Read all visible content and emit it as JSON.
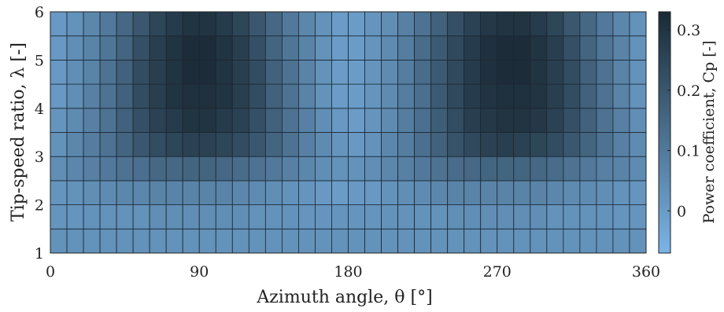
{
  "chart_data": {
    "type": "heatmap",
    "title": "",
    "xlabel": "Azimuth angle, θ [°]",
    "ylabel": "Tip-speed ratio, λ [-]",
    "colorbar_label": "Power coefficient, Cp [-]",
    "xlim": [
      0,
      360
    ],
    "ylim": [
      1,
      6
    ],
    "x_ticks": [
      "0",
      "90",
      "180",
      "270",
      "360"
    ],
    "y_ticks": [
      "1",
      "2",
      "3",
      "4",
      "5",
      "6"
    ],
    "colorbar_ticks": [
      "0",
      "0.1",
      "0.2",
      "0.3"
    ],
    "colorbar_range": [
      -0.07,
      0.33
    ],
    "color_low": "#7bb4e6",
    "color_high": "#1a2a35",
    "grid": true,
    "x_bin_width_deg": 10,
    "lambda_rows": [
      {
        "lambda_range": [
          1.0,
          1.5
        ],
        "values": [
          0.03,
          0.03,
          0.03,
          0.03,
          0.03,
          0.03,
          0.03,
          0.03,
          0.03,
          0.03,
          0.03,
          0.03,
          0.03,
          0.03,
          0.03,
          0.03,
          0.03,
          0.03,
          0.03,
          0.03,
          0.03,
          0.03,
          0.03,
          0.03,
          0.03,
          0.03,
          0.03,
          0.03,
          0.03,
          0.03,
          0.03,
          0.03,
          0.03,
          0.03,
          0.03,
          0.03
        ]
      },
      {
        "lambda_range": [
          1.5,
          2.0
        ],
        "values": [
          0.02,
          0.02,
          0.03,
          0.03,
          0.03,
          0.03,
          0.04,
          0.04,
          0.04,
          0.04,
          0.04,
          0.04,
          0.03,
          0.03,
          0.03,
          0.02,
          0.02,
          0.02,
          0.02,
          0.02,
          0.03,
          0.03,
          0.03,
          0.03,
          0.04,
          0.04,
          0.04,
          0.04,
          0.04,
          0.04,
          0.03,
          0.03,
          0.03,
          0.03,
          0.02,
          0.02
        ]
      },
      {
        "lambda_range": [
          2.0,
          2.5
        ],
        "values": [
          0.02,
          0.03,
          0.04,
          0.05,
          0.06,
          0.06,
          0.07,
          0.07,
          0.07,
          0.07,
          0.07,
          0.06,
          0.05,
          0.04,
          0.03,
          0.02,
          0.01,
          0.0,
          0.01,
          0.01,
          0.03,
          0.04,
          0.05,
          0.06,
          0.07,
          0.07,
          0.07,
          0.07,
          0.07,
          0.07,
          0.06,
          0.05,
          0.05,
          0.04,
          0.03,
          0.02
        ]
      },
      {
        "lambda_range": [
          2.5,
          3.0
        ],
        "values": [
          0.04,
          0.06,
          0.08,
          0.1,
          0.12,
          0.13,
          0.15,
          0.15,
          0.16,
          0.16,
          0.15,
          0.14,
          0.12,
          0.1,
          0.08,
          0.06,
          0.04,
          0.03,
          0.03,
          0.04,
          0.06,
          0.08,
          0.1,
          0.12,
          0.14,
          0.15,
          0.16,
          0.16,
          0.16,
          0.15,
          0.14,
          0.12,
          0.1,
          0.08,
          0.07,
          0.05
        ]
      },
      {
        "lambda_range": [
          3.0,
          3.5
        ],
        "values": [
          0.03,
          0.06,
          0.09,
          0.12,
          0.16,
          0.2,
          0.23,
          0.25,
          0.26,
          0.26,
          0.25,
          0.23,
          0.2,
          0.16,
          0.12,
          0.08,
          0.05,
          0.02,
          0.01,
          0.03,
          0.06,
          0.09,
          0.13,
          0.17,
          0.21,
          0.24,
          0.26,
          0.27,
          0.26,
          0.25,
          0.23,
          0.2,
          0.16,
          0.12,
          0.08,
          0.05
        ]
      },
      {
        "lambda_range": [
          3.5,
          4.0
        ],
        "values": [
          0.02,
          0.05,
          0.08,
          0.12,
          0.17,
          0.22,
          0.26,
          0.28,
          0.3,
          0.3,
          0.28,
          0.26,
          0.22,
          0.17,
          0.12,
          0.08,
          0.04,
          0.01,
          0.0,
          0.02,
          0.05,
          0.09,
          0.13,
          0.18,
          0.23,
          0.27,
          0.29,
          0.3,
          0.3,
          0.29,
          0.26,
          0.22,
          0.17,
          0.12,
          0.08,
          0.04
        ]
      },
      {
        "lambda_range": [
          4.0,
          4.5
        ],
        "values": [
          0.01,
          0.04,
          0.08,
          0.12,
          0.17,
          0.23,
          0.27,
          0.3,
          0.31,
          0.31,
          0.3,
          0.27,
          0.23,
          0.17,
          0.12,
          0.07,
          0.03,
          0.0,
          0.0,
          0.02,
          0.05,
          0.09,
          0.13,
          0.19,
          0.24,
          0.28,
          0.3,
          0.31,
          0.31,
          0.3,
          0.27,
          0.23,
          0.17,
          0.12,
          0.07,
          0.03
        ]
      },
      {
        "lambda_range": [
          4.5,
          5.0
        ],
        "values": [
          0.01,
          0.04,
          0.07,
          0.12,
          0.17,
          0.23,
          0.27,
          0.3,
          0.32,
          0.32,
          0.3,
          0.27,
          0.23,
          0.17,
          0.12,
          0.07,
          0.03,
          0.0,
          0.0,
          0.02,
          0.05,
          0.09,
          0.14,
          0.19,
          0.24,
          0.28,
          0.31,
          0.32,
          0.32,
          0.3,
          0.27,
          0.23,
          0.17,
          0.12,
          0.07,
          0.03
        ]
      },
      {
        "lambda_range": [
          5.0,
          5.5
        ],
        "values": [
          0.01,
          0.04,
          0.07,
          0.11,
          0.16,
          0.22,
          0.27,
          0.3,
          0.32,
          0.32,
          0.3,
          0.27,
          0.22,
          0.16,
          0.11,
          0.07,
          0.03,
          0.0,
          0.0,
          0.02,
          0.05,
          0.09,
          0.14,
          0.19,
          0.24,
          0.28,
          0.31,
          0.32,
          0.32,
          0.3,
          0.27,
          0.22,
          0.16,
          0.11,
          0.07,
          0.03
        ]
      },
      {
        "lambda_range": [
          5.5,
          6.0
        ],
        "values": [
          0.01,
          0.03,
          0.06,
          0.1,
          0.15,
          0.2,
          0.25,
          0.28,
          0.3,
          0.3,
          0.28,
          0.25,
          0.2,
          0.15,
          0.1,
          0.06,
          0.03,
          0.0,
          0.0,
          0.02,
          0.04,
          0.08,
          0.12,
          0.17,
          0.22,
          0.26,
          0.29,
          0.3,
          0.3,
          0.28,
          0.25,
          0.2,
          0.15,
          0.1,
          0.06,
          0.03
        ]
      }
    ]
  }
}
